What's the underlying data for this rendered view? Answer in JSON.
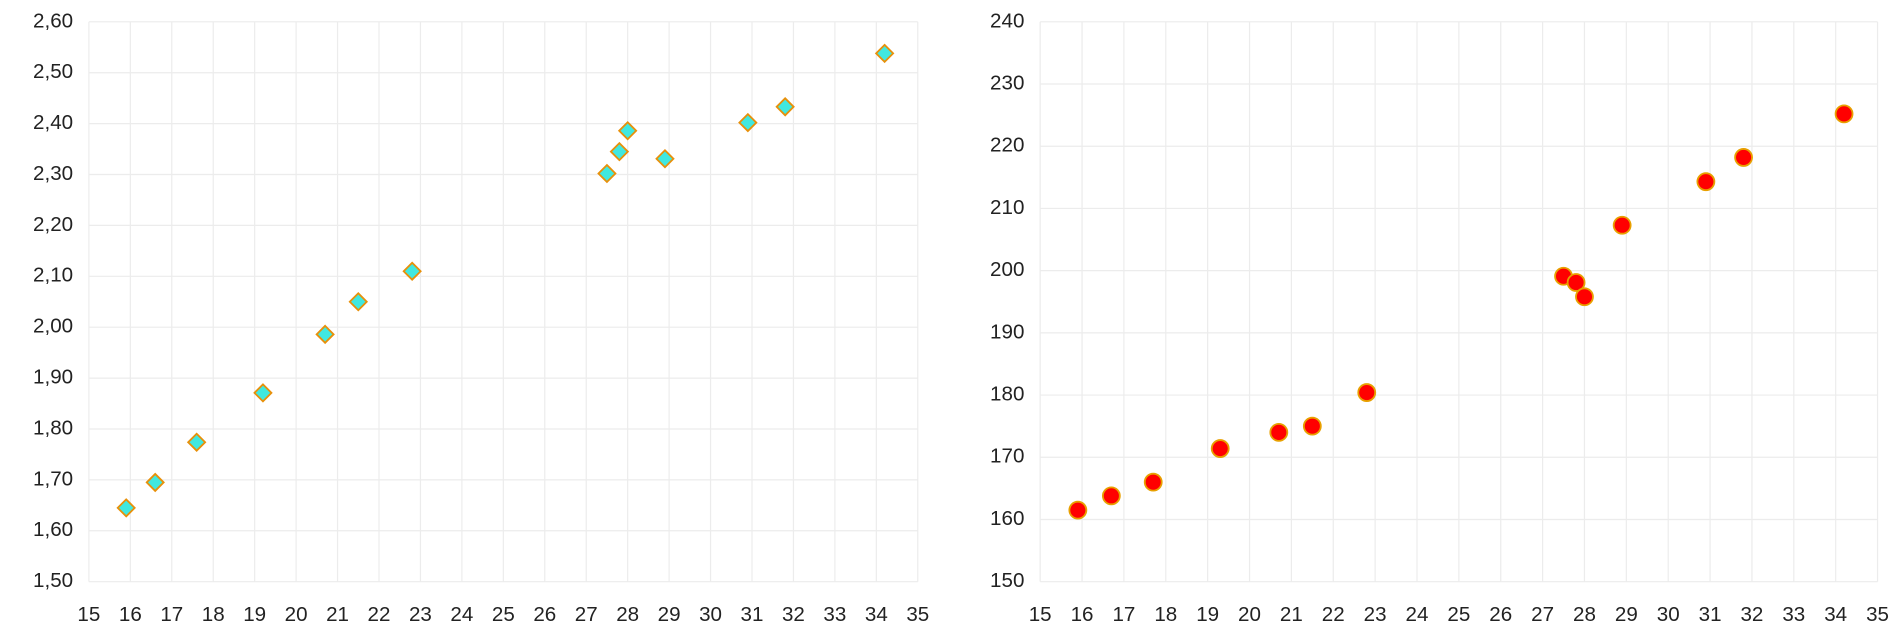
{
  "chart_data": [
    {
      "type": "scatter",
      "marker": "diamond",
      "color": "#40e8e0",
      "edge_color": "#e8900a",
      "grid": true,
      "x": [
        15.9,
        16.6,
        17.6,
        19.2,
        20.7,
        21.5,
        22.8,
        27.5,
        27.8,
        28.0,
        28.9,
        30.9,
        31.8,
        34.2
      ],
      "values": [
        1.645,
        1.695,
        1.774,
        1.871,
        1.986,
        2.05,
        2.11,
        2.302,
        2.345,
        2.386,
        2.331,
        2.402,
        2.433,
        2.538
      ],
      "xlim": [
        15,
        35
      ],
      "xticks": [
        15,
        16,
        17,
        18,
        19,
        20,
        21,
        22,
        23,
        24,
        25,
        26,
        27,
        28,
        29,
        30,
        31,
        32,
        33,
        34,
        35
      ],
      "ylim": [
        1.5,
        2.6
      ],
      "yticks": [
        {
          "value": 1.5,
          "label": "1,50"
        },
        {
          "value": 1.6,
          "label": "1,60"
        },
        {
          "value": 1.7,
          "label": "1,70"
        },
        {
          "value": 1.8,
          "label": "1,80"
        },
        {
          "value": 1.9,
          "label": "1,90"
        },
        {
          "value": 2.0,
          "label": "2,00"
        },
        {
          "value": 2.1,
          "label": "2,10"
        },
        {
          "value": 2.2,
          "label": "2,20"
        },
        {
          "value": 2.3,
          "label": "2,30"
        },
        {
          "value": 2.4,
          "label": "2,40"
        },
        {
          "value": 2.5,
          "label": "2,50"
        },
        {
          "value": 2.6,
          "label": "2,60"
        }
      ]
    },
    {
      "type": "scatter",
      "marker": "circle",
      "color": "#ff0000",
      "edge_color": "#e8a000",
      "grid": true,
      "x": [
        15.9,
        16.7,
        17.7,
        19.3,
        20.7,
        21.5,
        22.8,
        27.5,
        27.8,
        28.0,
        28.9,
        30.9,
        31.8,
        34.2
      ],
      "values": [
        161.5,
        163.8,
        166.0,
        171.4,
        174.0,
        175.0,
        180.4,
        199.1,
        198.1,
        195.8,
        207.3,
        214.3,
        218.2,
        225.2
      ],
      "xlim": [
        15,
        35
      ],
      "xticks": [
        15,
        16,
        17,
        18,
        19,
        20,
        21,
        22,
        23,
        24,
        25,
        26,
        27,
        28,
        29,
        30,
        31,
        32,
        33,
        34,
        35
      ],
      "ylim": [
        150,
        240
      ],
      "yticks": [
        150,
        160,
        170,
        180,
        190,
        200,
        210,
        220,
        230,
        240
      ]
    }
  ]
}
